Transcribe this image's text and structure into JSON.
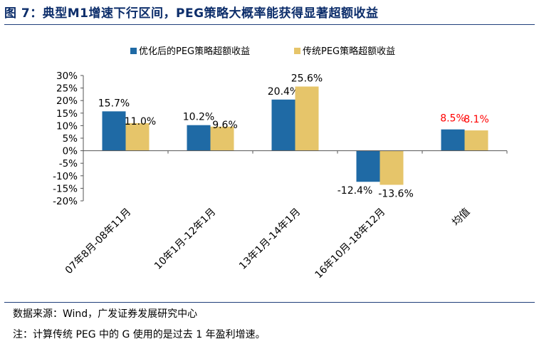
{
  "title": "图 7：典型M1增速下行区间，PEG策略大概率能获得显著超额收益",
  "source": "数据来源：Wind，广发证券发展研究中心",
  "note": "注：计算传统 PEG 中的 G 使用的是过去 1 年盈利增速。",
  "chart_data": {
    "type": "bar",
    "categories": [
      "07年8月-08年11月",
      "10年1月-12年1月",
      "13年1月-14年1月",
      "16年10月-18年12月",
      "均值"
    ],
    "series": [
      {
        "name": "优化后的PEG策略超额收益",
        "color": "#1f6aa5",
        "values": [
          15.7,
          10.2,
          20.4,
          -12.4,
          8.5
        ],
        "labels": [
          "15.7%",
          "10.2%",
          "20.4%",
          "-12.4%",
          "8.5%"
        ]
      },
      {
        "name": "传统PEG策略超额收益",
        "color": "#e6c56a",
        "values": [
          11.0,
          9.6,
          25.6,
          -13.6,
          8.1
        ],
        "labels": [
          "11.0%",
          "9.6%",
          "25.6%",
          "-13.6%",
          "8.1%"
        ]
      }
    ],
    "ylim": [
      -20,
      30
    ],
    "yticks": [
      30,
      25,
      20,
      15,
      10,
      5,
      0,
      -5,
      -10,
      -15,
      -20
    ],
    "ytick_labels": [
      "30%",
      "25%",
      "20%",
      "15%",
      "10%",
      "5%",
      "0%",
      "-5%",
      "-10%",
      "-15%",
      "-20%"
    ],
    "highlight_label_color": "#ff0000",
    "grid": false,
    "legend": "top"
  }
}
